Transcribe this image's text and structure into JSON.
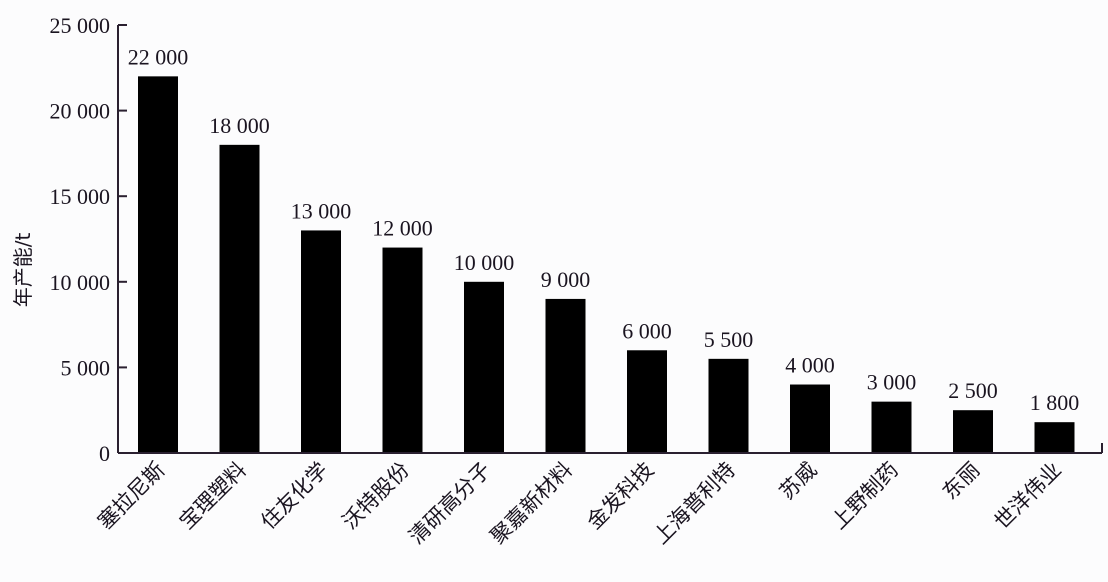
{
  "chart_data": {
    "type": "bar",
    "title": "",
    "xlabel": "",
    "ylabel": "年产能/t",
    "ylim": [
      0,
      25000
    ],
    "yticks": [
      0,
      5000,
      10000,
      15000,
      20000,
      25000
    ],
    "ytick_labels": [
      "0",
      "5 000",
      "10 000",
      "15 000",
      "20 000",
      "25 000"
    ],
    "grid": false,
    "legend": null,
    "categories": [
      "塞拉尼斯",
      "宝理塑料",
      "住友化学",
      "沃特股份",
      "清研高分子",
      "聚嘉新材料",
      "金发科技",
      "上海普利特",
      "苏威",
      "上野制药",
      "东丽",
      "世洋伟业"
    ],
    "values": [
      22000,
      18000,
      13000,
      12000,
      10000,
      9000,
      6000,
      5500,
      4000,
      3000,
      2500,
      1800
    ],
    "value_labels": [
      "22 000",
      "18 000",
      "13 000",
      "12 000",
      "10 000",
      "9 000",
      "6 000",
      "5 500",
      "4 000",
      "3 000",
      "2 500",
      "1 800"
    ],
    "bar_color": "#000000"
  }
}
